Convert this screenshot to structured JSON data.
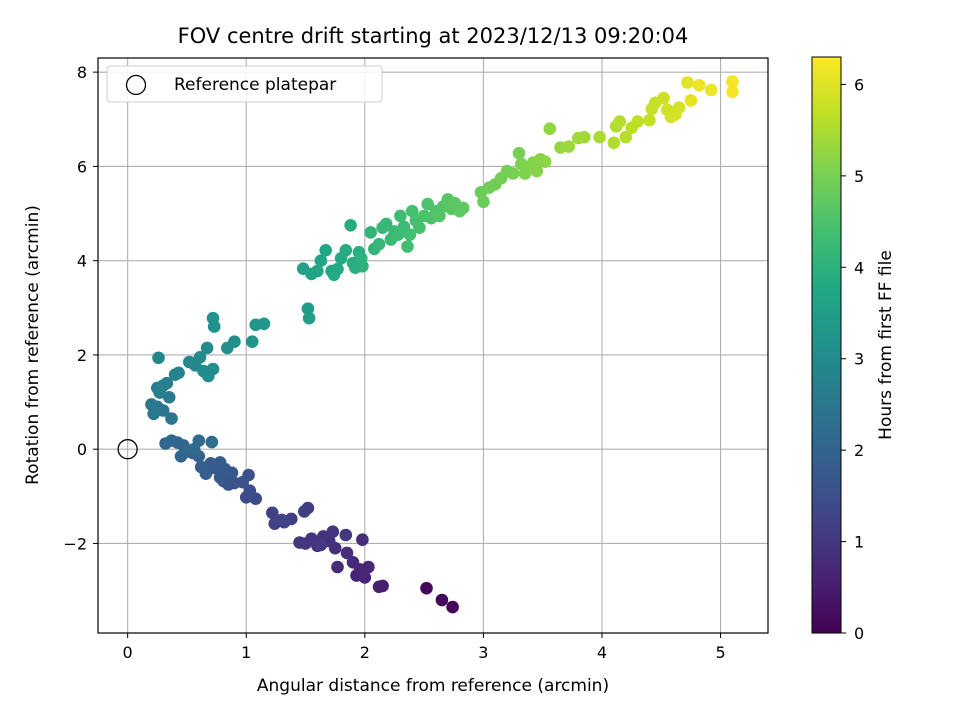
{
  "chart_data": {
    "type": "scatter",
    "title": "FOV centre drift starting at 2023/12/13 09:20:04",
    "xlabel": "Angular distance from reference (arcmin)",
    "ylabel": "Rotation from reference (arcmin)",
    "xlim": [
      -0.25,
      5.4
    ],
    "ylim": [
      -3.9,
      8.3
    ],
    "xticks": [
      0,
      1,
      2,
      3,
      4,
      5
    ],
    "yticks": [
      -2,
      0,
      2,
      4,
      6,
      8
    ],
    "ytick_labels": [
      "−2",
      "0",
      "2",
      "4",
      "6",
      "8"
    ],
    "grid": true,
    "legend": {
      "position": "top-left",
      "entries": [
        {
          "label": "Reference platepar",
          "marker": "open-circle"
        }
      ]
    },
    "reference_point": {
      "x": 0,
      "y": 0
    },
    "colorbar": {
      "label": "Hours from first FF file",
      "range": [
        0,
        6.3
      ],
      "ticks": [
        0,
        1,
        2,
        3,
        4,
        5,
        6
      ],
      "colormap": "viridis"
    },
    "points": [
      {
        "x": 2.74,
        "y": -3.35,
        "c": 0.05
      },
      {
        "x": 2.65,
        "y": -3.2,
        "c": 0.1
      },
      {
        "x": 2.52,
        "y": -2.95,
        "c": 0.15
      },
      {
        "x": 2.15,
        "y": -2.9,
        "c": 0.5
      },
      {
        "x": 2.12,
        "y": -2.92,
        "c": 0.55
      },
      {
        "x": 2.0,
        "y": -2.72,
        "c": 0.6
      },
      {
        "x": 1.93,
        "y": -2.68,
        "c": 0.62
      },
      {
        "x": 1.96,
        "y": -2.55,
        "c": 0.65
      },
      {
        "x": 2.03,
        "y": -2.5,
        "c": 0.68
      },
      {
        "x": 1.98,
        "y": -2.62,
        "c": 0.7
      },
      {
        "x": 1.9,
        "y": -2.4,
        "c": 0.72
      },
      {
        "x": 1.77,
        "y": -2.5,
        "c": 0.75
      },
      {
        "x": 1.85,
        "y": -2.2,
        "c": 0.78
      },
      {
        "x": 1.98,
        "y": -1.92,
        "c": 0.8
      },
      {
        "x": 1.75,
        "y": -2.1,
        "c": 0.82
      },
      {
        "x": 1.7,
        "y": -1.95,
        "c": 0.85
      },
      {
        "x": 1.65,
        "y": -1.85,
        "c": 0.88
      },
      {
        "x": 1.6,
        "y": -2.05,
        "c": 0.9
      },
      {
        "x": 1.55,
        "y": -1.9,
        "c": 0.92
      },
      {
        "x": 1.5,
        "y": -2.0,
        "c": 0.95
      },
      {
        "x": 1.45,
        "y": -1.98,
        "c": 0.97
      },
      {
        "x": 1.73,
        "y": -1.75,
        "c": 1.0
      },
      {
        "x": 1.84,
        "y": -1.82,
        "c": 1.02
      },
      {
        "x": 1.63,
        "y": -2.03,
        "c": 1.05
      },
      {
        "x": 1.52,
        "y": -1.25,
        "c": 1.1
      },
      {
        "x": 1.49,
        "y": -1.32,
        "c": 1.12
      },
      {
        "x": 1.38,
        "y": -1.48,
        "c": 1.15
      },
      {
        "x": 1.32,
        "y": -1.55,
        "c": 1.18
      },
      {
        "x": 1.24,
        "y": -1.58,
        "c": 1.2
      },
      {
        "x": 1.22,
        "y": -1.35,
        "c": 1.22
      },
      {
        "x": 1.3,
        "y": -1.5,
        "c": 1.25
      },
      {
        "x": 1.08,
        "y": -1.05,
        "c": 1.4
      },
      {
        "x": 1.0,
        "y": -1.02,
        "c": 1.45
      },
      {
        "x": 1.03,
        "y": -0.88,
        "c": 1.5
      },
      {
        "x": 1.02,
        "y": -0.55,
        "c": 1.55
      },
      {
        "x": 0.97,
        "y": -0.7,
        "c": 1.6
      },
      {
        "x": 0.9,
        "y": -0.72,
        "c": 1.62
      },
      {
        "x": 0.85,
        "y": -0.75,
        "c": 1.65
      },
      {
        "x": 0.81,
        "y": -0.68,
        "c": 1.68
      },
      {
        "x": 0.78,
        "y": -0.6,
        "c": 1.7
      },
      {
        "x": 0.88,
        "y": -0.5,
        "c": 1.72
      },
      {
        "x": 0.82,
        "y": -0.42,
        "c": 1.75
      },
      {
        "x": 0.75,
        "y": -0.35,
        "c": 1.78
      },
      {
        "x": 0.7,
        "y": -0.3,
        "c": 1.8
      },
      {
        "x": 0.78,
        "y": -0.28,
        "c": 1.82
      },
      {
        "x": 0.73,
        "y": -0.4,
        "c": 1.85
      },
      {
        "x": 0.66,
        "y": -0.52,
        "c": 1.88
      },
      {
        "x": 0.62,
        "y": -0.38,
        "c": 1.9
      },
      {
        "x": 0.6,
        "y": -0.15,
        "c": 1.95
      },
      {
        "x": 0.55,
        "y": -0.08,
        "c": 2.0
      },
      {
        "x": 0.5,
        "y": -0.05,
        "c": 2.02
      },
      {
        "x": 0.45,
        "y": -0.15,
        "c": 2.05
      },
      {
        "x": 0.47,
        "y": 0.08,
        "c": 2.08
      },
      {
        "x": 0.42,
        "y": 0.14,
        "c": 2.1
      },
      {
        "x": 0.37,
        "y": 0.18,
        "c": 2.12
      },
      {
        "x": 0.32,
        "y": 0.12,
        "c": 2.15
      },
      {
        "x": 0.6,
        "y": 0.18,
        "c": 2.18
      },
      {
        "x": 0.56,
        "y": 0.0,
        "c": 2.2
      },
      {
        "x": 0.71,
        "y": 0.15,
        "c": 2.22
      },
      {
        "x": 0.37,
        "y": 0.65,
        "c": 2.4
      },
      {
        "x": 0.3,
        "y": 0.82,
        "c": 2.45
      },
      {
        "x": 0.25,
        "y": 0.9,
        "c": 2.5
      },
      {
        "x": 0.22,
        "y": 0.75,
        "c": 2.52
      },
      {
        "x": 0.2,
        "y": 0.95,
        "c": 2.55
      },
      {
        "x": 0.35,
        "y": 1.1,
        "c": 2.6
      },
      {
        "x": 0.27,
        "y": 1.2,
        "c": 2.65
      },
      {
        "x": 0.25,
        "y": 1.3,
        "c": 2.68
      },
      {
        "x": 0.33,
        "y": 1.4,
        "c": 2.7
      },
      {
        "x": 0.3,
        "y": 1.35,
        "c": 2.72
      },
      {
        "x": 0.4,
        "y": 1.58,
        "c": 2.78
      },
      {
        "x": 0.43,
        "y": 1.62,
        "c": 2.8
      },
      {
        "x": 0.26,
        "y": 1.94,
        "c": 2.85
      },
      {
        "x": 0.52,
        "y": 1.85,
        "c": 2.9
      },
      {
        "x": 0.57,
        "y": 1.78,
        "c": 2.92
      },
      {
        "x": 0.61,
        "y": 1.95,
        "c": 2.95
      },
      {
        "x": 0.64,
        "y": 1.66,
        "c": 2.98
      },
      {
        "x": 0.67,
        "y": 2.15,
        "c": 3.0
      },
      {
        "x": 0.72,
        "y": 1.7,
        "c": 3.02
      },
      {
        "x": 0.68,
        "y": 1.55,
        "c": 3.05
      },
      {
        "x": 0.84,
        "y": 2.15,
        "c": 3.1
      },
      {
        "x": 0.9,
        "y": 2.28,
        "c": 3.12
      },
      {
        "x": 0.73,
        "y": 2.6,
        "c": 3.15
      },
      {
        "x": 0.72,
        "y": 2.78,
        "c": 3.18
      },
      {
        "x": 1.05,
        "y": 2.28,
        "c": 3.25
      },
      {
        "x": 1.08,
        "y": 2.64,
        "c": 3.3
      },
      {
        "x": 1.15,
        "y": 2.66,
        "c": 3.32
      },
      {
        "x": 1.52,
        "y": 2.98,
        "c": 3.45
      },
      {
        "x": 1.53,
        "y": 2.78,
        "c": 3.48
      },
      {
        "x": 1.48,
        "y": 3.83,
        "c": 3.6
      },
      {
        "x": 1.55,
        "y": 3.72,
        "c": 3.65
      },
      {
        "x": 1.6,
        "y": 3.78,
        "c": 3.68
      },
      {
        "x": 1.63,
        "y": 4.0,
        "c": 3.7
      },
      {
        "x": 1.67,
        "y": 4.22,
        "c": 3.72
      },
      {
        "x": 1.72,
        "y": 3.78,
        "c": 3.75
      },
      {
        "x": 1.74,
        "y": 3.7,
        "c": 3.78
      },
      {
        "x": 1.77,
        "y": 3.82,
        "c": 3.8
      },
      {
        "x": 1.8,
        "y": 4.05,
        "c": 3.82
      },
      {
        "x": 1.84,
        "y": 4.22,
        "c": 3.85
      },
      {
        "x": 1.88,
        "y": 4.75,
        "c": 3.88
      },
      {
        "x": 1.9,
        "y": 3.95,
        "c": 3.9
      },
      {
        "x": 1.92,
        "y": 3.85,
        "c": 3.92
      },
      {
        "x": 1.95,
        "y": 4.18,
        "c": 3.95
      },
      {
        "x": 1.97,
        "y": 4.05,
        "c": 3.98
      },
      {
        "x": 1.98,
        "y": 3.88,
        "c": 4.0
      },
      {
        "x": 2.05,
        "y": 4.6,
        "c": 4.1
      },
      {
        "x": 2.08,
        "y": 4.25,
        "c": 4.12
      },
      {
        "x": 2.12,
        "y": 4.35,
        "c": 4.15
      },
      {
        "x": 2.15,
        "y": 4.7,
        "c": 4.18
      },
      {
        "x": 2.18,
        "y": 4.78,
        "c": 4.2
      },
      {
        "x": 2.22,
        "y": 4.45,
        "c": 4.22
      },
      {
        "x": 2.25,
        "y": 4.62,
        "c": 4.25
      },
      {
        "x": 2.28,
        "y": 4.55,
        "c": 4.28
      },
      {
        "x": 2.3,
        "y": 4.95,
        "c": 4.3
      },
      {
        "x": 2.33,
        "y": 4.72,
        "c": 4.32
      },
      {
        "x": 2.36,
        "y": 4.3,
        "c": 4.35
      },
      {
        "x": 2.38,
        "y": 4.55,
        "c": 4.38
      },
      {
        "x": 2.4,
        "y": 5.05,
        "c": 4.4
      },
      {
        "x": 2.43,
        "y": 4.85,
        "c": 4.42
      },
      {
        "x": 2.46,
        "y": 4.7,
        "c": 4.45
      },
      {
        "x": 2.5,
        "y": 4.95,
        "c": 4.48
      },
      {
        "x": 2.53,
        "y": 5.2,
        "c": 4.5
      },
      {
        "x": 2.56,
        "y": 4.9,
        "c": 4.52
      },
      {
        "x": 2.6,
        "y": 5.05,
        "c": 4.55
      },
      {
        "x": 2.63,
        "y": 4.95,
        "c": 4.58
      },
      {
        "x": 2.66,
        "y": 5.15,
        "c": 4.6
      },
      {
        "x": 2.7,
        "y": 5.3,
        "c": 4.62
      },
      {
        "x": 2.73,
        "y": 5.1,
        "c": 4.65
      },
      {
        "x": 2.76,
        "y": 5.22,
        "c": 4.68
      },
      {
        "x": 2.8,
        "y": 5.05,
        "c": 4.7
      },
      {
        "x": 2.83,
        "y": 5.12,
        "c": 4.72
      },
      {
        "x": 2.98,
        "y": 5.45,
        "c": 4.85
      },
      {
        "x": 3.0,
        "y": 5.25,
        "c": 4.88
      },
      {
        "x": 3.05,
        "y": 5.55,
        "c": 4.9
      },
      {
        "x": 3.1,
        "y": 5.62,
        "c": 4.92
      },
      {
        "x": 3.15,
        "y": 5.75,
        "c": 4.95
      },
      {
        "x": 3.2,
        "y": 5.9,
        "c": 4.98
      },
      {
        "x": 3.25,
        "y": 5.85,
        "c": 5.0
      },
      {
        "x": 3.3,
        "y": 6.28,
        "c": 5.02
      },
      {
        "x": 3.32,
        "y": 6.05,
        "c": 5.05
      },
      {
        "x": 3.35,
        "y": 5.85,
        "c": 5.08
      },
      {
        "x": 3.38,
        "y": 5.95,
        "c": 5.1
      },
      {
        "x": 3.42,
        "y": 6.08,
        "c": 5.12
      },
      {
        "x": 3.45,
        "y": 5.9,
        "c": 5.15
      },
      {
        "x": 3.48,
        "y": 6.15,
        "c": 5.18
      },
      {
        "x": 3.52,
        "y": 6.1,
        "c": 5.2
      },
      {
        "x": 3.56,
        "y": 6.8,
        "c": 5.25
      },
      {
        "x": 3.65,
        "y": 6.4,
        "c": 5.3
      },
      {
        "x": 3.72,
        "y": 6.42,
        "c": 5.35
      },
      {
        "x": 3.8,
        "y": 6.6,
        "c": 5.4
      },
      {
        "x": 3.85,
        "y": 6.62,
        "c": 5.42
      },
      {
        "x": 3.98,
        "y": 6.62,
        "c": 5.5
      },
      {
        "x": 4.1,
        "y": 6.5,
        "c": 5.55
      },
      {
        "x": 4.12,
        "y": 6.85,
        "c": 5.58
      },
      {
        "x": 4.15,
        "y": 6.95,
        "c": 5.6
      },
      {
        "x": 4.2,
        "y": 6.62,
        "c": 5.62
      },
      {
        "x": 4.25,
        "y": 6.82,
        "c": 5.65
      },
      {
        "x": 4.3,
        "y": 6.95,
        "c": 5.68
      },
      {
        "x": 4.4,
        "y": 6.98,
        "c": 5.72
      },
      {
        "x": 4.42,
        "y": 7.22,
        "c": 5.75
      },
      {
        "x": 4.45,
        "y": 7.35,
        "c": 5.78
      },
      {
        "x": 4.52,
        "y": 7.45,
        "c": 5.82
      },
      {
        "x": 4.55,
        "y": 7.2,
        "c": 5.85
      },
      {
        "x": 4.58,
        "y": 7.05,
        "c": 5.88
      },
      {
        "x": 4.62,
        "y": 7.1,
        "c": 5.9
      },
      {
        "x": 4.65,
        "y": 7.25,
        "c": 5.92
      },
      {
        "x": 4.72,
        "y": 7.78,
        "c": 6.05
      },
      {
        "x": 4.75,
        "y": 7.4,
        "c": 6.08
      },
      {
        "x": 4.82,
        "y": 7.72,
        "c": 6.12
      },
      {
        "x": 4.92,
        "y": 7.62,
        "c": 6.15
      },
      {
        "x": 5.1,
        "y": 7.8,
        "c": 6.2
      },
      {
        "x": 5.1,
        "y": 7.58,
        "c": 6.22
      }
    ]
  }
}
